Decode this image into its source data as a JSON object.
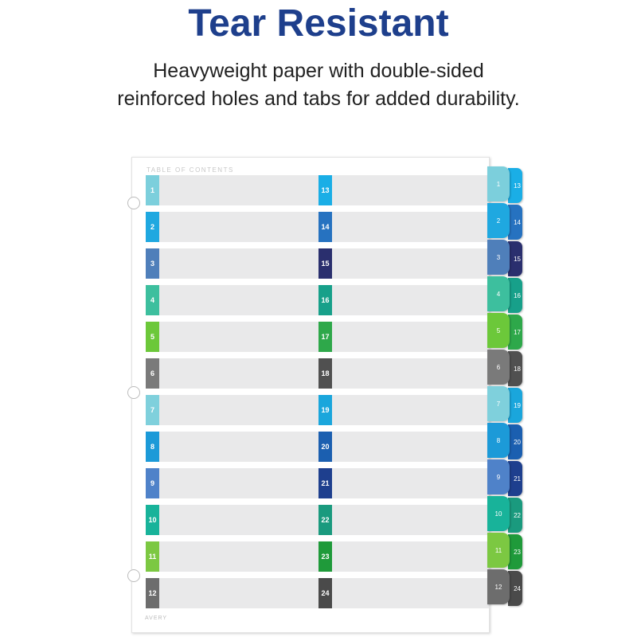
{
  "header": {
    "title": "Tear Resistant",
    "subtitle_line1": "Heavyweight paper with double-sided",
    "subtitle_line2": "reinforced holes and tabs for added durability."
  },
  "sheet": {
    "toc_label": "TABLE OF CONTENTS",
    "brand": "AVERY"
  },
  "tabs_left": [
    {
      "label": "1",
      "color": "#7ccfdc"
    },
    {
      "label": "2",
      "color": "#1fa8e0"
    },
    {
      "label": "3",
      "color": "#4f7fba"
    },
    {
      "label": "4",
      "color": "#3dbf9e"
    },
    {
      "label": "5",
      "color": "#6cc83a"
    },
    {
      "label": "6",
      "color": "#7a7a7a"
    },
    {
      "label": "7",
      "color": "#7fd0dc"
    },
    {
      "label": "8",
      "color": "#1c9ad8"
    },
    {
      "label": "9",
      "color": "#4f82c9"
    },
    {
      "label": "10",
      "color": "#18b39a"
    },
    {
      "label": "11",
      "color": "#7cc842"
    },
    {
      "label": "12",
      "color": "#6d6d6d"
    }
  ],
  "tabs_right": [
    {
      "label": "13",
      "color": "#1aaee6"
    },
    {
      "label": "14",
      "color": "#2672c0"
    },
    {
      "label": "15",
      "color": "#2a2f6e"
    },
    {
      "label": "16",
      "color": "#17a08a"
    },
    {
      "label": "17",
      "color": "#2ea84a"
    },
    {
      "label": "18",
      "color": "#505050"
    },
    {
      "label": "19",
      "color": "#1aa6dc"
    },
    {
      "label": "20",
      "color": "#1b5fb0"
    },
    {
      "label": "21",
      "color": "#1e3f8e"
    },
    {
      "label": "22",
      "color": "#1a9a7e"
    },
    {
      "label": "23",
      "color": "#1f9a3a"
    },
    {
      "label": "24",
      "color": "#4a4a4a"
    }
  ]
}
